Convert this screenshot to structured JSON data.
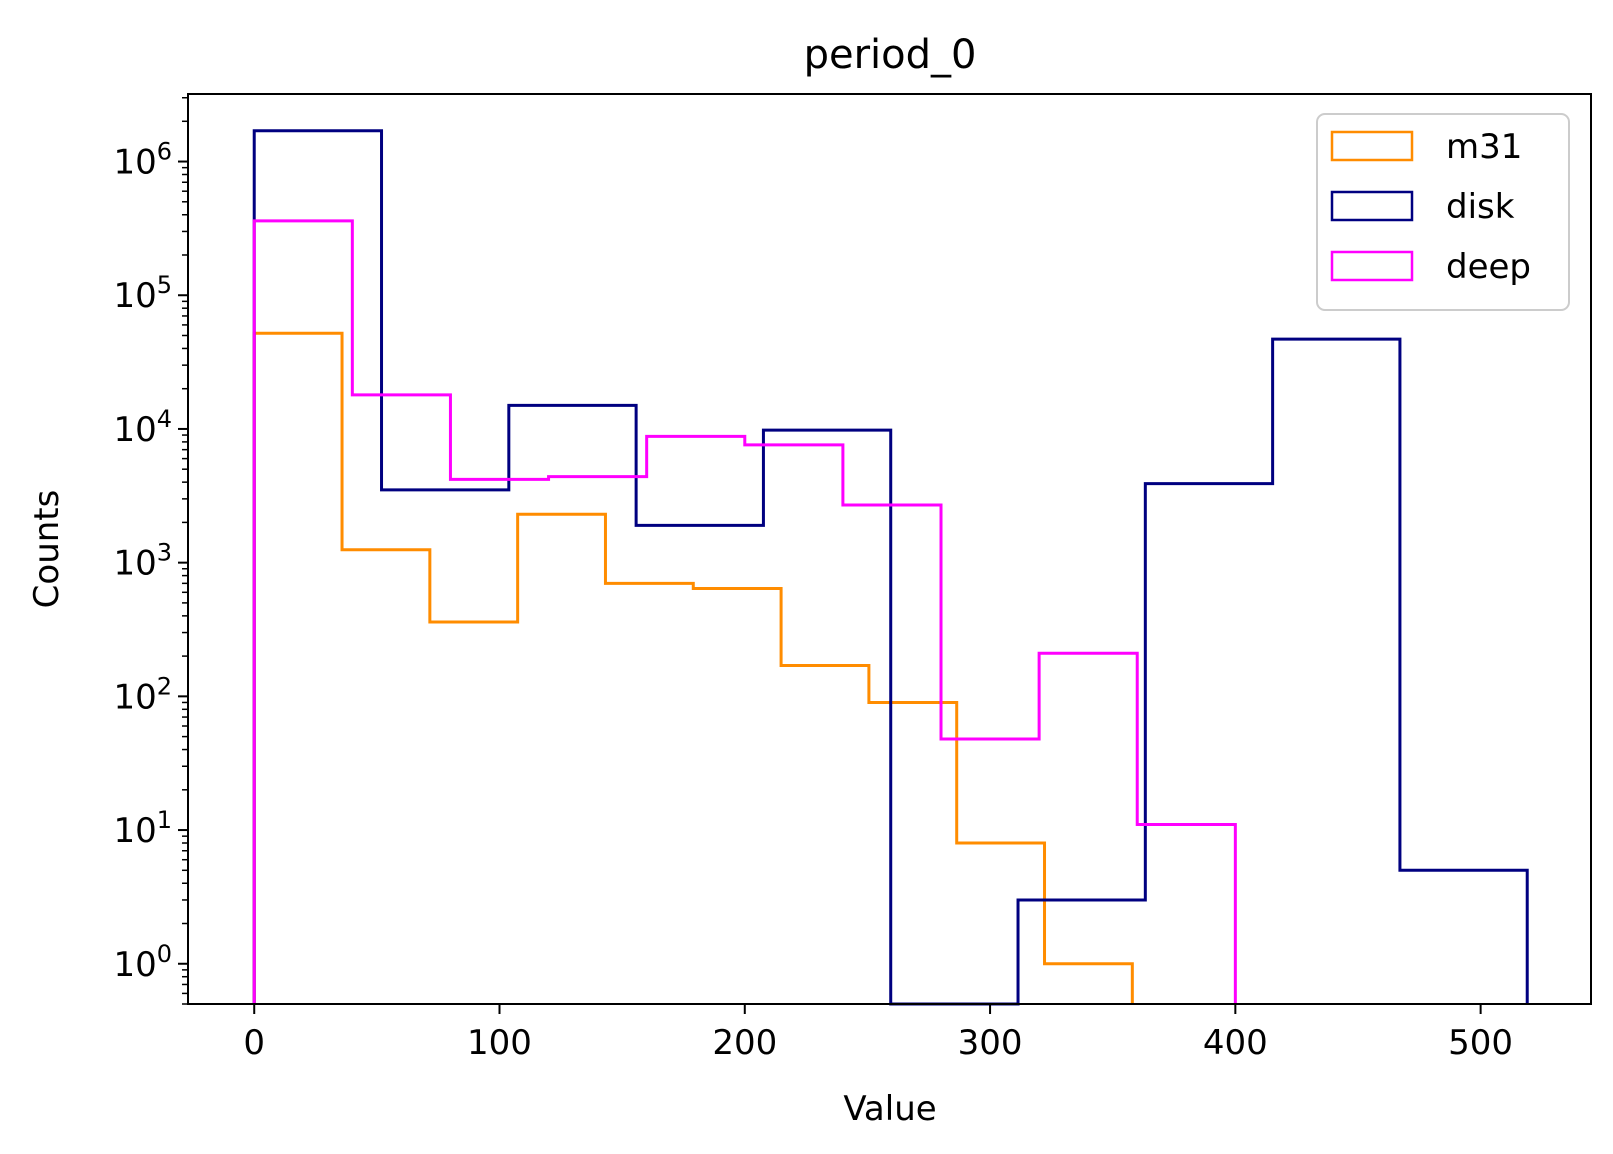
{
  "chart_data": {
    "type": "histogram",
    "title": "period_0",
    "xlabel": "Value",
    "ylabel": "Counts",
    "xlim": [
      -27,
      545
    ],
    "ylim": [
      0.5,
      3200000
    ],
    "yscale": "log",
    "x_ticks": [
      0,
      100,
      200,
      300,
      400,
      500
    ],
    "x_tick_labels": [
      "0",
      "100",
      "200",
      "300",
      "400",
      "500"
    ],
    "y_ticks": [
      1,
      10,
      100,
      1000,
      10000,
      100000,
      1000000
    ],
    "y_tick_labels": [
      {
        "base": "10",
        "exp": "0"
      },
      {
        "base": "10",
        "exp": "1"
      },
      {
        "base": "10",
        "exp": "2"
      },
      {
        "base": "10",
        "exp": "3"
      },
      {
        "base": "10",
        "exp": "4"
      },
      {
        "base": "10",
        "exp": "5"
      },
      {
        "base": "10",
        "exp": "6"
      }
    ],
    "grid": false,
    "legend_position": "top-right",
    "histtype": "step",
    "series": [
      {
        "name": "m31",
        "color": "#ff8c00",
        "bin_edges": [
          0,
          35.8,
          71.6,
          107.4,
          143.2,
          179,
          214.8,
          250.6,
          286.4,
          322.2,
          358
        ],
        "counts": [
          52000,
          1250,
          360,
          2300,
          700,
          640,
          170,
          90,
          8,
          1
        ]
      },
      {
        "name": "disk",
        "color": "#000080",
        "bin_edges": [
          0,
          51.9,
          103.8,
          155.7,
          207.6,
          259.5,
          311.4,
          363.3,
          415.2,
          467.1,
          519
        ],
        "counts": [
          1700000,
          3500,
          15000,
          1900,
          9800,
          0,
          3,
          3900,
          47000,
          5
        ]
      },
      {
        "name": "deep",
        "color": "#ff00ff",
        "bin_edges": [
          0,
          40,
          80,
          120,
          160,
          200,
          240,
          280,
          320,
          360,
          400
        ],
        "counts": [
          360000,
          18000,
          4200,
          4400,
          8800,
          7600,
          2700,
          48,
          210,
          11
        ]
      }
    ]
  }
}
